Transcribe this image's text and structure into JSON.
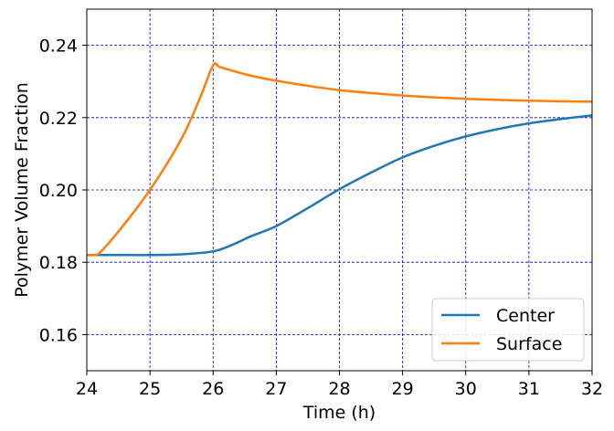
{
  "chart_data": {
    "type": "line",
    "title": "",
    "xlabel": "Time (h)",
    "ylabel": "Polymer Volume Fraction",
    "xlim": [
      24,
      32
    ],
    "ylim": [
      0.15,
      0.25
    ],
    "xticks": [
      24,
      25,
      26,
      27,
      28,
      29,
      30,
      31,
      32
    ],
    "yticks": [
      0.16,
      0.18,
      0.2,
      0.22,
      0.24
    ],
    "xtick_labels": [
      "24",
      "25",
      "26",
      "27",
      "28",
      "29",
      "30",
      "31",
      "32"
    ],
    "ytick_labels": [
      "0.16",
      "0.18",
      "0.20",
      "0.22",
      "0.24"
    ],
    "grid": true,
    "legend_position": "bottom-right",
    "series": [
      {
        "name": "Center",
        "color": "#1f77b4",
        "x": [
          24.0,
          24.5,
          25.0,
          25.5,
          26.0,
          26.3,
          26.6,
          27.0,
          27.5,
          28.0,
          28.5,
          29.0,
          29.5,
          30.0,
          30.5,
          31.0,
          31.5,
          32.0
        ],
        "y": [
          0.182,
          0.182,
          0.182,
          0.1822,
          0.183,
          0.1848,
          0.1872,
          0.19,
          0.195,
          0.2002,
          0.2048,
          0.209,
          0.2122,
          0.2148,
          0.2168,
          0.2184,
          0.2196,
          0.2206
        ]
      },
      {
        "name": "Surface",
        "color": "#ff7f0e",
        "x": [
          24.0,
          24.1,
          24.2,
          24.5,
          25.0,
          25.5,
          25.8,
          26.0,
          26.1,
          26.3,
          26.6,
          27.0,
          27.5,
          28.0,
          28.5,
          29.0,
          29.5,
          30.0,
          30.5,
          31.0,
          31.5,
          32.0
        ],
        "y": [
          0.182,
          0.182,
          0.1826,
          0.1885,
          0.2,
          0.2142,
          0.2258,
          0.2345,
          0.234,
          0.233,
          0.2316,
          0.2302,
          0.2288,
          0.2276,
          0.2268,
          0.2261,
          0.2256,
          0.2252,
          0.2249,
          0.2247,
          0.2245,
          0.2244
        ]
      }
    ]
  }
}
